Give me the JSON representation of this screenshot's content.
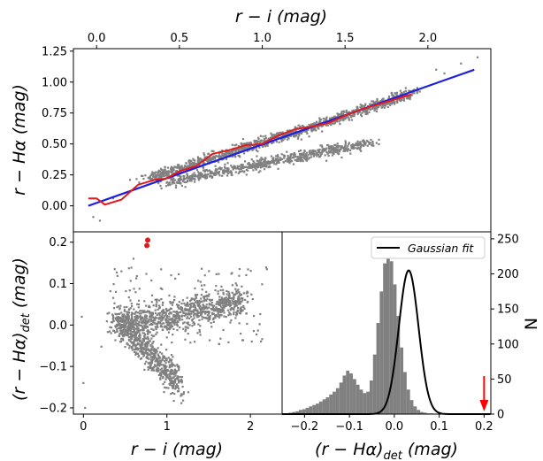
{
  "figure": {
    "top_xlabel": "r − i (mag)",
    "top_ylabel": "r − Hα (mag)",
    "bl_xlabel": "r − i (mag)",
    "bl_ylabel": "(r − Hα)",
    "bl_ylabel_sub": "det",
    "bl_ylabel_unit": " (mag)",
    "br_xlabel": "(r − Hα)",
    "br_xlabel_sub": "det",
    "br_xlabel_unit": " (mag)",
    "br_ylabel": "N",
    "legend_label": "Gaussian fit"
  },
  "colors": {
    "scatter": "#808080",
    "fit_line": "#1f1fe0",
    "track_line": "#e31a1c",
    "highlight": "#e31a1c",
    "hist": "#808080",
    "gauss": "#000000",
    "arrow": "#ff0000"
  },
  "chart_data": [
    {
      "type": "scatter",
      "panel": "top",
      "xlabel": "r − i (mag)",
      "ylabel": "r − Hα (mag)",
      "xlim": [
        -0.14,
        2.38
      ],
      "ylim": [
        -0.21,
        1.27
      ],
      "xticks": [
        0.0,
        0.5,
        1.0,
        1.5,
        2.0
      ],
      "yticks": [
        0.0,
        0.25,
        0.5,
        0.75,
        1.0,
        1.25
      ],
      "x_axis_position": "top",
      "series": [
        {
          "kind": "line",
          "x": [
            -0.05,
            2.28
          ],
          "y": [
            0.0,
            1.1
          ]
        },
        {
          "kind": "line",
          "x": [
            -0.05,
            0.0,
            0.05,
            0.15,
            0.25,
            0.35,
            0.42,
            0.5,
            0.6,
            0.7,
            0.8,
            0.9,
            1.0,
            1.1,
            1.2,
            1.3,
            1.4,
            1.5,
            1.6,
            1.7,
            1.8,
            1.9
          ],
          "y": [
            0.06,
            0.06,
            0.01,
            0.05,
            0.17,
            0.21,
            0.22,
            0.28,
            0.32,
            0.42,
            0.45,
            0.49,
            0.5,
            0.57,
            0.62,
            0.64,
            0.67,
            0.73,
            0.78,
            0.82,
            0.86,
            0.9
          ]
        }
      ]
    },
    {
      "type": "scatter",
      "panel": "bottom-left",
      "xlabel": "r − i (mag)",
      "ylabel": "(r − Hα)det (mag)",
      "xlim": [
        -0.12,
        2.38
      ],
      "ylim": [
        -0.215,
        0.225
      ],
      "xticks": [
        0,
        1,
        2
      ],
      "yticks": [
        -0.2,
        -0.1,
        0.0,
        0.1,
        0.2
      ],
      "highlighted_points": [
        {
          "x": 0.77,
          "y": 0.205
        },
        {
          "x": 0.76,
          "y": 0.192
        }
      ]
    },
    {
      "type": "bar",
      "panel": "bottom-right",
      "xlabel": "(r − Hα)det (mag)",
      "ylabel": "N",
      "xlim": [
        -0.25,
        0.215
      ],
      "ylim": [
        0,
        260
      ],
      "xticks": [
        -0.2,
        -0.1,
        0.0,
        0.1,
        0.2
      ],
      "yticks": [
        0,
        50,
        100,
        150,
        200,
        250
      ],
      "y_axis_position": "right",
      "bin_width": 0.0075,
      "bin_start": -0.25,
      "counts": [
        0,
        1,
        2,
        3,
        4,
        6,
        7,
        9,
        11,
        13,
        15,
        18,
        21,
        24,
        28,
        32,
        37,
        45,
        55,
        62,
        58,
        50,
        42,
        35,
        30,
        32,
        48,
        85,
        130,
        175,
        215,
        238,
        218,
        185,
        140,
        95,
        60,
        35,
        20,
        11,
        6,
        3,
        2,
        1,
        1,
        0,
        0,
        0,
        0,
        0,
        0,
        0,
        0,
        0,
        0,
        0,
        0,
        0,
        0,
        0,
        0
      ],
      "gaussian": {
        "mu": 0.032,
        "sigma": 0.022,
        "amplitude": 205
      },
      "arrow_x": 0.2,
      "legend": {
        "label": "Gaussian fit",
        "position": "top-right"
      }
    }
  ]
}
